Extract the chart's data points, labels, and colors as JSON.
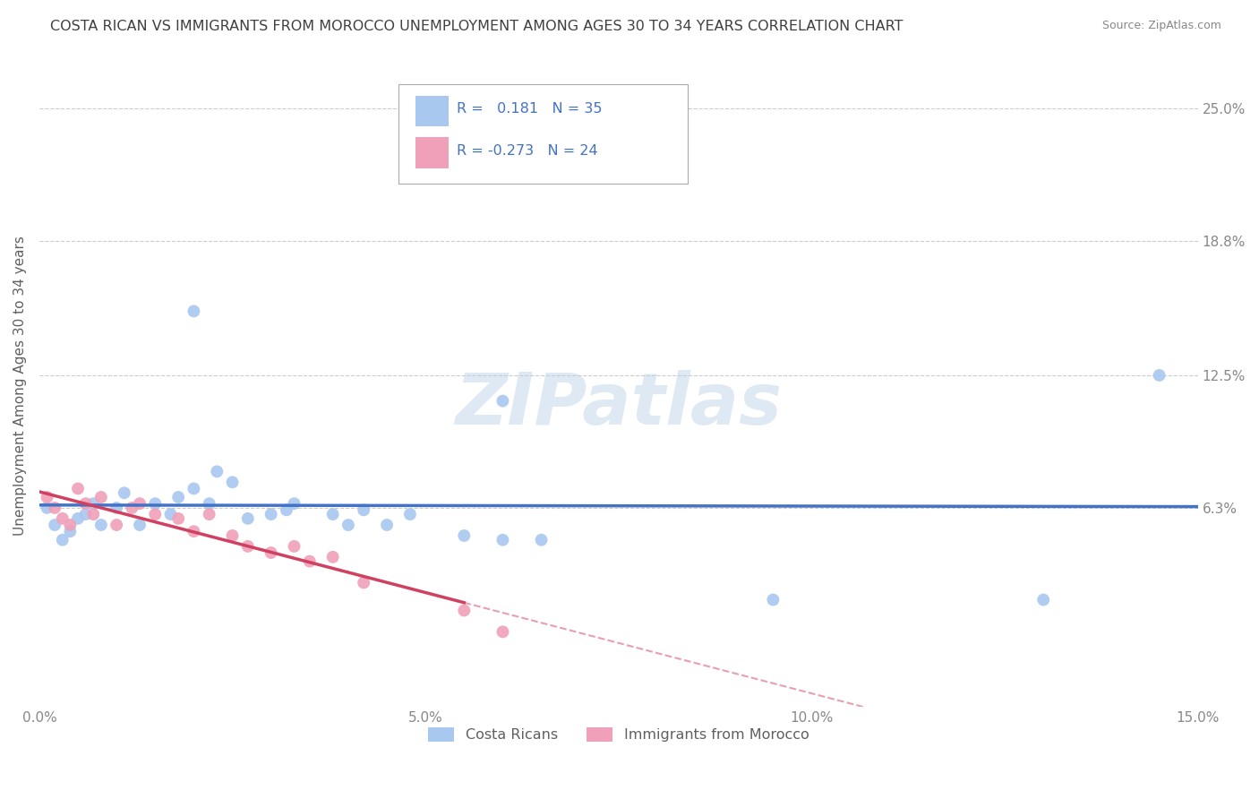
{
  "title": "COSTA RICAN VS IMMIGRANTS FROM MOROCCO UNEMPLOYMENT AMONG AGES 30 TO 34 YEARS CORRELATION CHART",
  "source": "Source: ZipAtlas.com",
  "ylabel": "Unemployment Among Ages 30 to 34 years",
  "xlim": [
    0.0,
    0.15
  ],
  "ylim": [
    -0.03,
    0.27
  ],
  "yticks": [
    0.063,
    0.125,
    0.188,
    0.25
  ],
  "ytick_labels": [
    "6.3%",
    "12.5%",
    "18.8%",
    "25.0%"
  ],
  "xticks": [
    0.0,
    0.05,
    0.1,
    0.15
  ],
  "xtick_labels": [
    "0.0%",
    "5.0%",
    "10.0%",
    "15.0%"
  ],
  "legend1_r": "0.181",
  "legend1_n": "35",
  "legend2_r": "-0.273",
  "legend2_n": "24",
  "blue_color": "#a8c8f0",
  "pink_color": "#f0a0b8",
  "blue_line_color": "#4472c4",
  "pink_line_color": "#d04060",
  "blue_x": [
    0.001,
    0.002,
    0.003,
    0.004,
    0.005,
    0.006,
    0.007,
    0.008,
    0.01,
    0.011,
    0.013,
    0.015,
    0.017,
    0.018,
    0.02,
    0.022,
    0.023,
    0.025,
    0.027,
    0.03,
    0.032,
    0.033,
    0.038,
    0.04,
    0.042,
    0.045,
    0.048,
    0.055,
    0.06,
    0.065,
    0.02,
    0.06,
    0.095,
    0.13,
    0.145
  ],
  "blue_y": [
    0.063,
    0.055,
    0.048,
    0.052,
    0.058,
    0.06,
    0.065,
    0.055,
    0.063,
    0.07,
    0.055,
    0.065,
    0.06,
    0.068,
    0.072,
    0.065,
    0.08,
    0.075,
    0.058,
    0.06,
    0.062,
    0.065,
    0.06,
    0.055,
    0.062,
    0.055,
    0.06,
    0.05,
    0.048,
    0.048,
    0.155,
    0.113,
    0.02,
    0.02,
    0.125
  ],
  "pink_x": [
    0.001,
    0.002,
    0.003,
    0.004,
    0.005,
    0.006,
    0.007,
    0.008,
    0.01,
    0.012,
    0.013,
    0.015,
    0.018,
    0.02,
    0.022,
    0.025,
    0.027,
    0.03,
    0.033,
    0.035,
    0.038,
    0.042,
    0.055,
    0.06
  ],
  "pink_y": [
    0.068,
    0.063,
    0.058,
    0.055,
    0.072,
    0.065,
    0.06,
    0.068,
    0.055,
    0.063,
    0.065,
    0.06,
    0.058,
    0.052,
    0.06,
    0.05,
    0.045,
    0.042,
    0.045,
    0.038,
    0.04,
    0.028,
    0.015,
    0.005
  ],
  "background_color": "#ffffff",
  "grid_color": "#cccccc",
  "title_color": "#404040",
  "axis_label_color": "#606060",
  "tick_color": "#888888",
  "legend_label1": "Costa Ricans",
  "legend_label2": "Immigrants from Morocco"
}
